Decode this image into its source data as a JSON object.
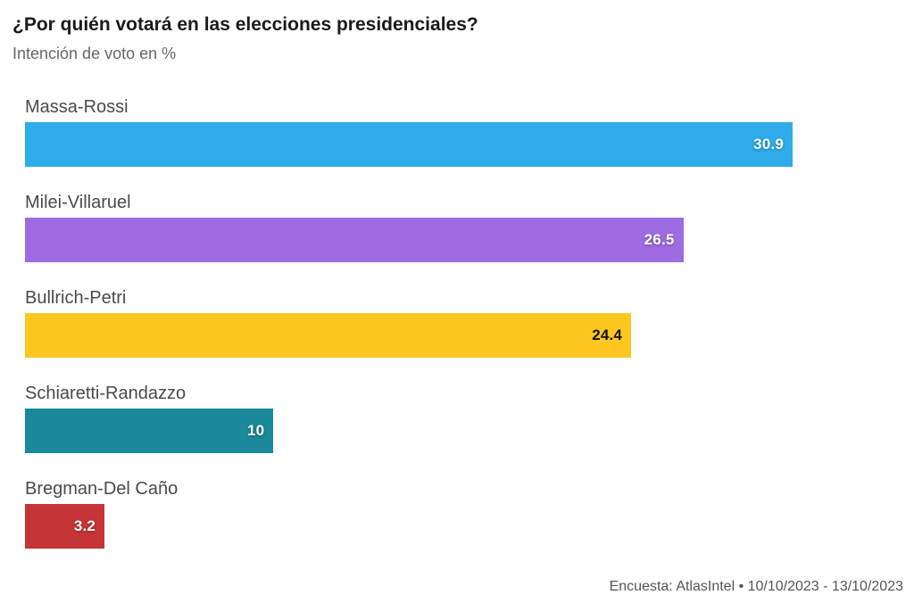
{
  "chart_data": {
    "type": "bar",
    "orientation": "horizontal",
    "title": "¿Por quién votará en las elecciones presidenciales?",
    "subtitle": "Intención de voto en %",
    "categories": [
      "Massa-Rossi",
      "Milei-Villaruel",
      "Bullrich-Petri",
      "Schiaretti-Randazzo",
      "Bregman-Del Caño"
    ],
    "values": [
      30.9,
      26.5,
      24.4,
      10,
      3.2
    ],
    "value_labels": [
      "30.9",
      "26.5",
      "24.4",
      "10",
      "3.2"
    ],
    "bar_colors": [
      "#2FACEA",
      "#9F6BE3",
      "#FDC720",
      "#1A8A9A",
      "#C53537"
    ],
    "value_label_styles": [
      "light",
      "light",
      "dark",
      "light",
      "light"
    ],
    "xlim": [
      0,
      30.9
    ],
    "grid": false,
    "legend": "none",
    "footer": "Encuesta: AtlasIntel • 10/10/2023 - 13/10/2023"
  }
}
